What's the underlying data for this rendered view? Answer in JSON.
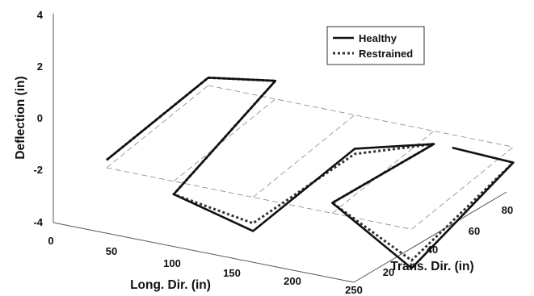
{
  "chart_data": {
    "type": "line",
    "projection": "3d",
    "zlabel": "Deflection (in)",
    "xlabel": "Long. Dir. (in)",
    "ylabel": "Trans. Dir. (in)",
    "z_ticks": [
      "-4",
      "-2",
      "0",
      "2",
      "4"
    ],
    "x_ticks": [
      "0",
      "50",
      "100",
      "150",
      "200",
      "250"
    ],
    "y_ticks": [
      "20",
      "40",
      "60",
      "80"
    ],
    "zlim": [
      -4,
      4
    ],
    "xlim": [
      0,
      250
    ],
    "ylim": [
      0,
      90
    ],
    "legend": {
      "position": "top-right",
      "entries": [
        "Healthy",
        "Restrained"
      ]
    },
    "series": [
      {
        "name": "Healthy",
        "points": [
          [
            0,
            0,
            0.3
          ],
          [
            0,
            85,
            0.3
          ],
          [
            55,
            85,
            0.7
          ],
          [
            55,
            0,
            -0.5
          ],
          [
            120,
            0,
            -1.3
          ],
          [
            120,
            85,
            -1.3
          ],
          [
            185,
            85,
            -0.5
          ],
          [
            185,
            0,
            0.4
          ],
          [
            250,
            0,
            -1.5
          ],
          [
            250,
            85,
            -0.6
          ],
          [
            200,
            85,
            -0.5
          ]
        ]
      },
      {
        "name": "Restrained",
        "points": [
          [
            0,
            0,
            0.3
          ],
          [
            0,
            85,
            0.3
          ],
          [
            55,
            85,
            0.7
          ],
          [
            55,
            0,
            -0.5
          ],
          [
            120,
            0,
            -1.0
          ],
          [
            120,
            85,
            -1.5
          ],
          [
            185,
            85,
            -0.5
          ],
          [
            185,
            0,
            0.4
          ],
          [
            250,
            0,
            -1.2
          ],
          [
            250,
            85,
            -0.6
          ]
        ]
      }
    ]
  }
}
